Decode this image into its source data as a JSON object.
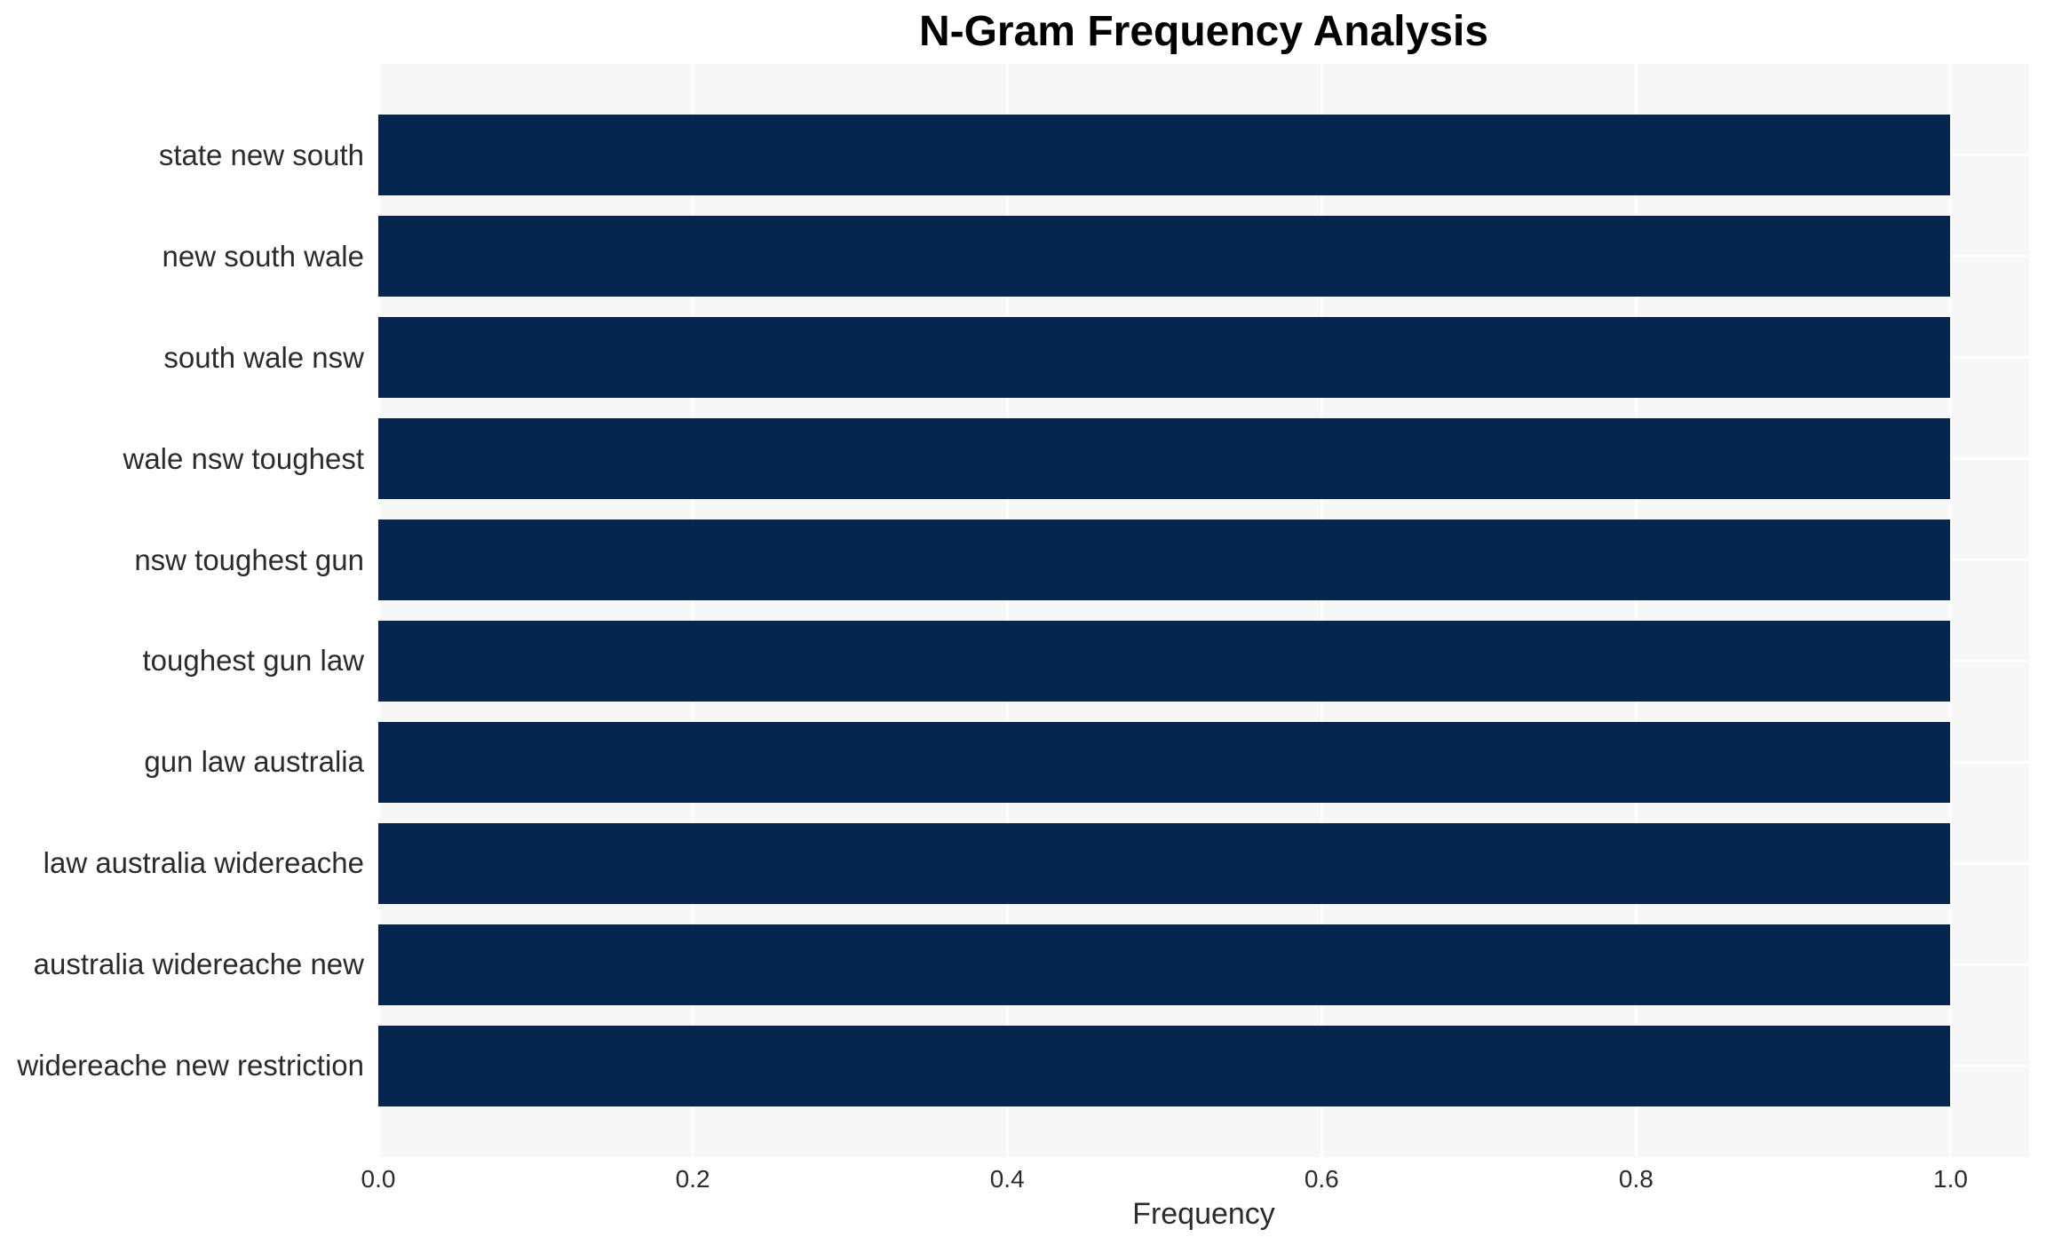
{
  "chart_data": {
    "type": "bar",
    "orientation": "horizontal",
    "title": "N-Gram Frequency Analysis",
    "xlabel": "Frequency",
    "ylabel": "",
    "categories": [
      "state new south",
      "new south wale",
      "south wale nsw",
      "wale nsw toughest",
      "nsw toughest gun",
      "toughest gun law",
      "gun law australia",
      "law australia widereache",
      "australia widereache new",
      "widereache new restriction"
    ],
    "values": [
      1.0,
      1.0,
      1.0,
      1.0,
      1.0,
      1.0,
      1.0,
      1.0,
      1.0,
      1.0
    ],
    "xlim": [
      0,
      1.05
    ],
    "xticks": [
      0,
      0.2,
      0.4,
      0.6,
      0.8,
      1.0
    ],
    "xtick_labels": [
      "0.0",
      "0.2",
      "0.4",
      "0.6",
      "0.8",
      "1.0"
    ],
    "grid": true,
    "legend_position": "none",
    "colors": {
      "bar": "#062650",
      "plot_bg": "#f7f7f7",
      "grid": "#ffffff",
      "text": "#2b2b2b",
      "title": "#000000"
    }
  }
}
